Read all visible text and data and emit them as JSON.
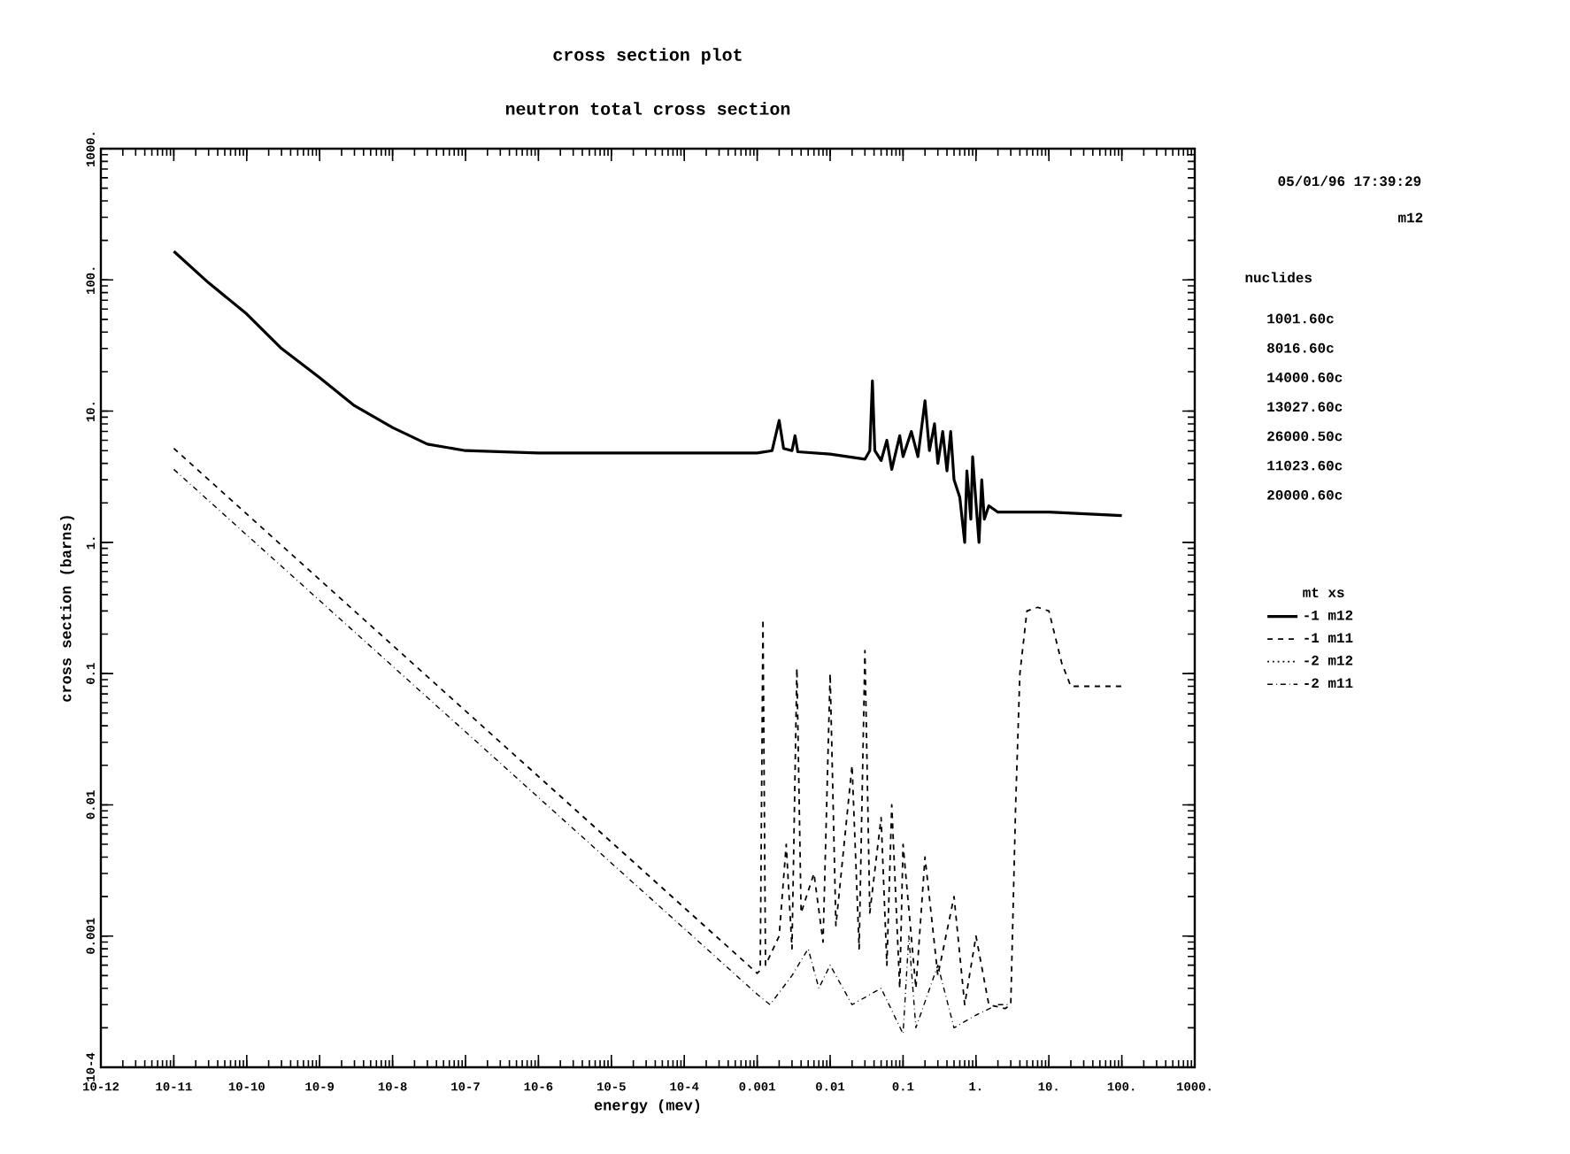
{
  "chart_data": {
    "type": "line",
    "title": "cross section plot",
    "subtitle": "neutron total cross section",
    "xlabel": "energy (mev)",
    "ylabel": "cross section (barns)",
    "log": "xy",
    "grid": false,
    "legend": "right",
    "legend_title": "mt xs",
    "xlim": [
      1e-12,
      1000
    ],
    "ylim": [
      0.0001,
      1000
    ],
    "xticks": [
      {
        "value": 1e-12,
        "label": "10-12"
      },
      {
        "value": 1e-11,
        "label": "10-11"
      },
      {
        "value": 1e-10,
        "label": "10-10"
      },
      {
        "value": 1e-09,
        "label": "10-9"
      },
      {
        "value": 1e-08,
        "label": "10-8"
      },
      {
        "value": 1e-07,
        "label": "10-7"
      },
      {
        "value": 1e-06,
        "label": "10-6"
      },
      {
        "value": 1e-05,
        "label": "10-5"
      },
      {
        "value": 0.0001,
        "label": "10-4"
      },
      0.001,
      0.01,
      0.1,
      {
        "value": 1,
        "label": "1."
      },
      {
        "value": 10,
        "label": "10."
      },
      {
        "value": 100,
        "label": "100."
      },
      {
        "value": 1000,
        "label": "1000."
      }
    ],
    "yticks": [
      {
        "value": 0.0001,
        "label": "10-4"
      },
      0.001,
      0.01,
      0.1,
      {
        "value": 1,
        "label": "1."
      },
      {
        "value": 10,
        "label": "10."
      },
      {
        "value": 100,
        "label": "100."
      },
      {
        "value": 1000,
        "label": "1000."
      }
    ],
    "annotations": [
      "05/01/96 17:39:29",
      "m12",
      "nuclides",
      "1001.60c",
      "8016.60c",
      "14000.60c",
      "13027.60c",
      "26000.50c",
      "11023.60c",
      "20000.60c"
    ],
    "series": [
      {
        "name": "-1 m12",
        "color": "#000000",
        "line_style": "solid",
        "x": [
          1e-11,
          3e-11,
          1e-10,
          3e-10,
          1e-09,
          3e-09,
          1e-08,
          3e-08,
          1e-07,
          1e-06,
          0.0001,
          0.001,
          0.0016,
          0.002,
          0.0023,
          0.003,
          0.0033,
          0.0036,
          0.01,
          0.03,
          0.035,
          0.038,
          0.041,
          0.05,
          0.06,
          0.07,
          0.09,
          0.1,
          0.13,
          0.16,
          0.2,
          0.23,
          0.27,
          0.3,
          0.35,
          0.4,
          0.45,
          0.5,
          0.6,
          0.7,
          0.75,
          0.85,
          0.9,
          1.0,
          1.1,
          1.2,
          1.3,
          1.5,
          2,
          10,
          100
        ],
        "values": [
          165,
          95,
          55,
          30,
          18,
          11,
          7.5,
          5.6,
          5.0,
          4.8,
          4.8,
          4.8,
          5,
          8.5,
          5.2,
          5,
          6.5,
          4.9,
          4.7,
          4.3,
          5,
          17,
          5,
          4.2,
          6,
          3.6,
          6.5,
          4.5,
          7,
          4.5,
          12,
          5,
          8,
          4,
          7,
          3.5,
          7,
          3,
          2.2,
          1.0,
          3.5,
          1.5,
          4.5,
          2,
          1.0,
          3,
          1.5,
          1.9,
          1.7,
          1.7,
          1.6
        ]
      },
      {
        "name": "-1 m11",
        "color": "#000000",
        "line_style": "dashed",
        "x": [
          1e-11,
          0.001,
          0.0011,
          0.0012,
          0.0013,
          0.002,
          0.0025,
          0.003,
          0.0035,
          0.004,
          0.006,
          0.008,
          0.01,
          0.012,
          0.02,
          0.025,
          0.03,
          0.035,
          0.05,
          0.06,
          0.07,
          0.09,
          0.1,
          0.15,
          0.2,
          0.3,
          0.5,
          0.7,
          1,
          1.5,
          2.5,
          3,
          3.5,
          4,
          5,
          7,
          10,
          15,
          20,
          100
        ],
        "values": [
          5.2,
          0.00052,
          0.00055,
          0.26,
          0.0006,
          0.001,
          0.005,
          0.0008,
          0.11,
          0.0015,
          0.003,
          0.0009,
          0.1,
          0.0012,
          0.02,
          0.0008,
          0.15,
          0.0015,
          0.008,
          0.0006,
          0.01,
          0.0004,
          0.005,
          0.0004,
          0.004,
          0.0005,
          0.002,
          0.0003,
          0.001,
          0.0003,
          0.00028,
          0.0003,
          0.01,
          0.1,
          0.3,
          0.32,
          0.3,
          0.12,
          0.08,
          0.08
        ]
      },
      {
        "name": "-2 m12",
        "color": "#000000",
        "line_style": "dotted"
      },
      {
        "name": "-2 m11",
        "color": "#000000",
        "line_style": "dashdot",
        "x": [
          1e-11,
          0.001,
          0.0015,
          0.003,
          0.005,
          0.007,
          0.01,
          0.02,
          0.05,
          0.1,
          0.12,
          0.15,
          0.3,
          0.5,
          1,
          2,
          3
        ],
        "values": [
          3.6,
          0.00036,
          0.0003,
          0.0005,
          0.0008,
          0.0004,
          0.0006,
          0.0003,
          0.0004,
          0.00018,
          0.001,
          0.0002,
          0.0006,
          0.0002,
          0.00025,
          0.0003,
          0.0003
        ]
      }
    ]
  }
}
